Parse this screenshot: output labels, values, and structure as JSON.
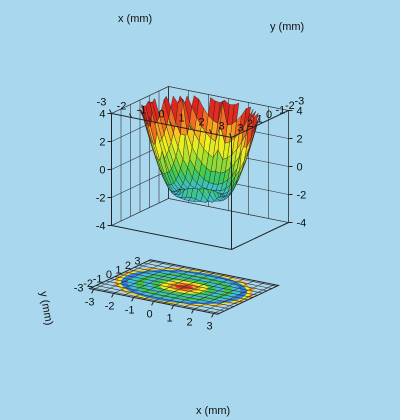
{
  "chart_data": {
    "type": "surface",
    "description_of_data": "surface z(x,y) over x,y in [-3,3] mm with contour projection on base plane",
    "x_axis": {
      "label": "x (mm)",
      "range": [
        -3,
        3
      ],
      "ticks": [
        "-3",
        "-2",
        "-1",
        "0",
        "1",
        "2",
        "3"
      ]
    },
    "y_axis": {
      "label": "y (mm)",
      "range": [
        -3,
        3
      ],
      "ticks": [
        "-3",
        "-2",
        "-1",
        "0",
        "1",
        "2",
        "3"
      ]
    },
    "z_axis": {
      "label": "",
      "range": [
        -4,
        4
      ],
      "ticks": [
        "-4",
        "-2",
        "0",
        "2",
        "4"
      ]
    },
    "top_x_axis": {
      "label": "x (mm)",
      "ticks": [
        "-3",
        "-2",
        "-1",
        "0",
        "1",
        "2",
        "3"
      ]
    },
    "top_y_axis": {
      "label": "y (mm)",
      "ticks": [
        "3",
        "2",
        "1",
        "0",
        "-1",
        "-2",
        "-3"
      ]
    },
    "left_z_ticks": [
      "4",
      "2",
      "0",
      "-2",
      "-4"
    ],
    "right_z_ticks": [
      "4",
      "2",
      "0",
      "-2",
      "-4"
    ],
    "left_y_axis": {
      "label": "y (mm)",
      "ticks": [
        "3",
        "2",
        "1",
        "0",
        "-1",
        "-2",
        "-3"
      ]
    },
    "bottom_x_axis": {
      "label": "x (mm)",
      "ticks": [
        "-3",
        "-2",
        "-1",
        "0",
        "1",
        "2",
        "3"
      ]
    },
    "surface_peak_z": 3.2,
    "surface_bowl_min_z": -4,
    "outer_spike_count": 16,
    "colormap": [
      "#1a2fd0",
      "#2f7fe8",
      "#3fc0e0",
      "#3cc850",
      "#a8e030",
      "#f0f020",
      "#f5a020",
      "#e83020",
      "#c01818"
    ],
    "grid_visible": true
  }
}
